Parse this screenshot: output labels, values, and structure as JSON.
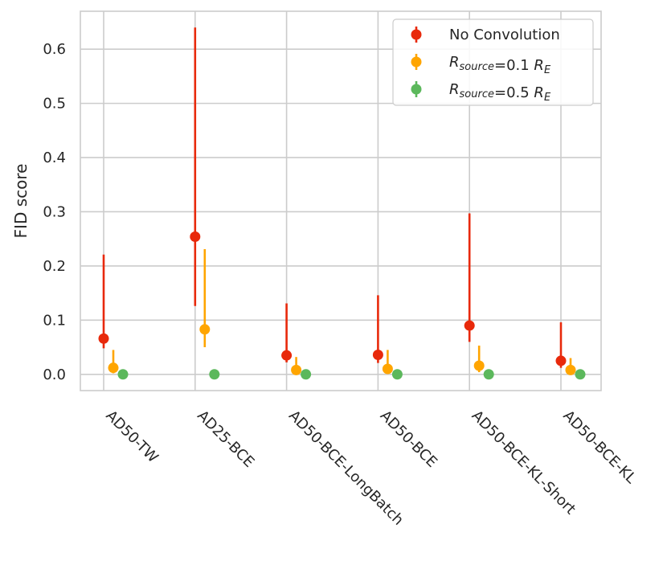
{
  "chart_data": {
    "type": "scatter",
    "style": "point-with-vertical-error-bars",
    "ylabel": "FID score",
    "xlabel": "",
    "ylim": [
      -0.03,
      0.67
    ],
    "yticks": [
      "0.0",
      "0.1",
      "0.2",
      "0.3",
      "0.4",
      "0.5",
      "0.6"
    ],
    "ytick_values": [
      0.0,
      0.1,
      0.2,
      0.3,
      0.4,
      0.5,
      0.6
    ],
    "grid": true,
    "legend_position": "top-right",
    "categories": [
      "AD50-TW",
      "AD25-BCE",
      "AD50-BCE-LongBatch",
      "AD50-BCE",
      "AD50-BCE-KL-Short",
      "AD50-BCE-KL"
    ],
    "series": [
      {
        "name": "No Convolution",
        "color": "#e8290b",
        "values": [
          0.066,
          0.254,
          0.035,
          0.036,
          0.09,
          0.025
        ],
        "err_low": [
          0.048,
          0.126,
          0.022,
          0.021,
          0.06,
          0.012
        ],
        "err_high": [
          0.221,
          0.64,
          0.131,
          0.146,
          0.297,
          0.096
        ]
      },
      {
        "name_main": "R",
        "name_sub": "source",
        "name_rest": "=0.1 ",
        "name_main2": "R",
        "name_sub2": "E",
        "color": "#ffa500",
        "values": [
          0.012,
          0.083,
          0.008,
          0.01,
          0.016,
          0.008
        ],
        "err_low": [
          0.002,
          0.05,
          0.001,
          0.001,
          0.004,
          0.001
        ],
        "err_high": [
          0.045,
          0.231,
          0.032,
          0.045,
          0.053,
          0.03
        ]
      },
      {
        "name_main": "R",
        "name_sub": "source",
        "name_rest": "=0.5 ",
        "name_main2": "R",
        "name_sub2": "E",
        "color": "#5cb85c",
        "values": [
          0.0,
          0.0,
          0.0,
          0.0,
          0.0,
          0.0
        ],
        "err_low": [
          0.0,
          0.0,
          0.0,
          0.0,
          0.0,
          0.0
        ],
        "err_high": [
          0.0,
          0.0,
          0.0,
          0.0,
          0.0,
          0.0
        ]
      }
    ]
  }
}
